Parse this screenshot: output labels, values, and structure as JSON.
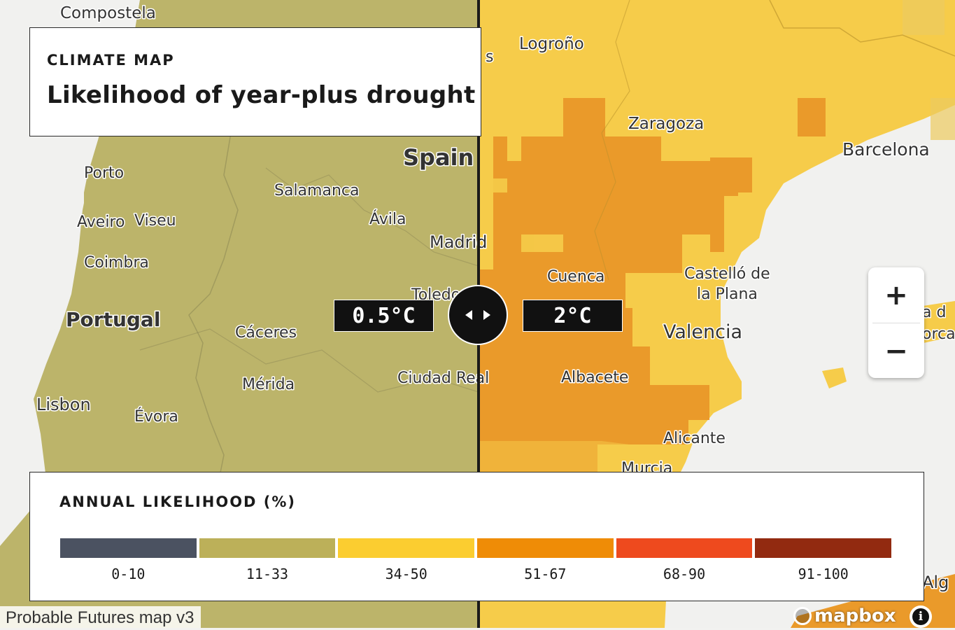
{
  "title": {
    "eyebrow": "CLIMATE MAP",
    "main": "Likelihood of year-plus drought"
  },
  "comparison": {
    "left_temp": "0.5°C",
    "right_temp": "2°C",
    "left_color": "#bcb46a",
    "right_color": "#f6cc4a"
  },
  "places": {
    "compostela": "Compostela",
    "porto": "Porto",
    "aveiro": "Aveiro",
    "viseu": "Viseu",
    "coimbra": "Coimbra",
    "portugal": "Portugal",
    "lisbon": "Lisbon",
    "evora": "Évora",
    "salamanca": "Salamanca",
    "avila": "Ávila",
    "spain": "Spain",
    "madrid": "Madrid",
    "toledo": "Toledo",
    "caceres": "Cáceres",
    "merida": "Mérida",
    "ciudad_real": "Ciudad Real",
    "logrono": "Logroño",
    "zaragoza": "Zaragoza",
    "barcelona": "Barcelona",
    "cuenca": "Cuenca",
    "castello_1": "Castelló de",
    "castello_2": "la Plana",
    "valencia": "Valencia",
    "albacete": "Albacete",
    "alicante": "Alicante",
    "murcia": "Murcia",
    "palma_partial_1": "a d",
    "palma_partial_2": "orca",
    "algiers_partial": "Alg",
    "s_partial": "s"
  },
  "zoom": {
    "in_label": "+",
    "out_label": "−"
  },
  "legend": {
    "title": "ANNUAL LIKELIHOOD (%)",
    "bins": [
      {
        "label": "0-10",
        "color": "#4b5261"
      },
      {
        "label": "11-33",
        "color": "#bcb059"
      },
      {
        "label": "34-50",
        "color": "#fbcd30"
      },
      {
        "label": "51-67",
        "color": "#ef8c06"
      },
      {
        "label": "68-90",
        "color": "#ee4a1e"
      },
      {
        "label": "91-100",
        "color": "#922a10"
      }
    ]
  },
  "attribution": "Probable Futures map v3",
  "mapbox": "mapbox",
  "info_icon": "i"
}
